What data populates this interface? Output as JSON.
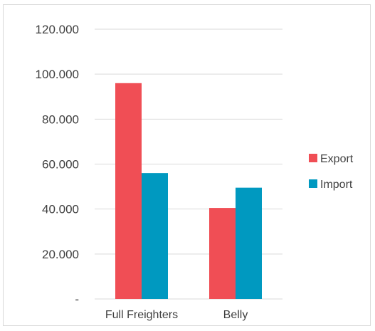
{
  "chart_data": {
    "type": "bar",
    "categories": [
      "Full Freighters",
      "Belly"
    ],
    "series": [
      {
        "name": "Export",
        "values": [
          96000,
          40500
        ],
        "color": "#f04e55"
      },
      {
        "name": "Import",
        "values": [
          56000,
          49500
        ],
        "color": "#0099c0"
      }
    ],
    "ylim": [
      0,
      120000
    ],
    "yticks": [
      {
        "value": 0,
        "label": "-"
      },
      {
        "value": 20000,
        "label": "20.000"
      },
      {
        "value": 40000,
        "label": "40.000"
      },
      {
        "value": 60000,
        "label": "60.000"
      },
      {
        "value": 80000,
        "label": "80.000"
      },
      {
        "value": 100000,
        "label": "100.000"
      },
      {
        "value": 120000,
        "label": "120.000"
      }
    ],
    "grid": true,
    "legend_position": "right"
  }
}
